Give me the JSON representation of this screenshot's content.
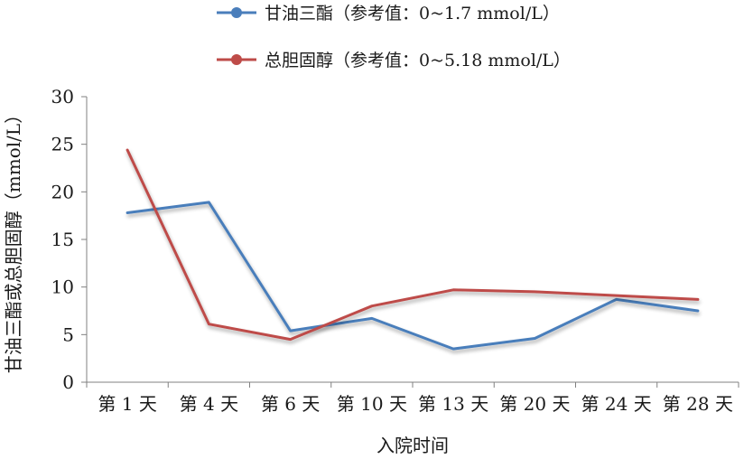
{
  "chart_data": {
    "type": "line",
    "xlabel": "入院时间",
    "ylabel": "甘油三酯或总胆固醇（mmol/L）",
    "categories": [
      "第 1 天",
      "第 4 天",
      "第 6 天",
      "第 10 天",
      "第 13 天",
      "第 20 天",
      "第 24 天",
      "第 28 天"
    ],
    "ylim": [
      0,
      30
    ],
    "yticks": [
      0,
      5,
      10,
      15,
      20,
      25,
      30
    ],
    "grid": false,
    "legend_position": "top-center",
    "series": [
      {
        "name": "甘油三酯（参考值：0~1.7 mmol/L）",
        "color": "#4a7ebb",
        "values": [
          17.8,
          18.9,
          5.4,
          6.7,
          3.5,
          4.6,
          8.7,
          7.5
        ]
      },
      {
        "name": "总胆固醇（参考值：0~5.18 mmol/L）",
        "color": "#be4b48",
        "values": [
          24.4,
          6.1,
          4.5,
          8.0,
          9.7,
          9.5,
          9.1,
          8.7
        ]
      }
    ]
  }
}
